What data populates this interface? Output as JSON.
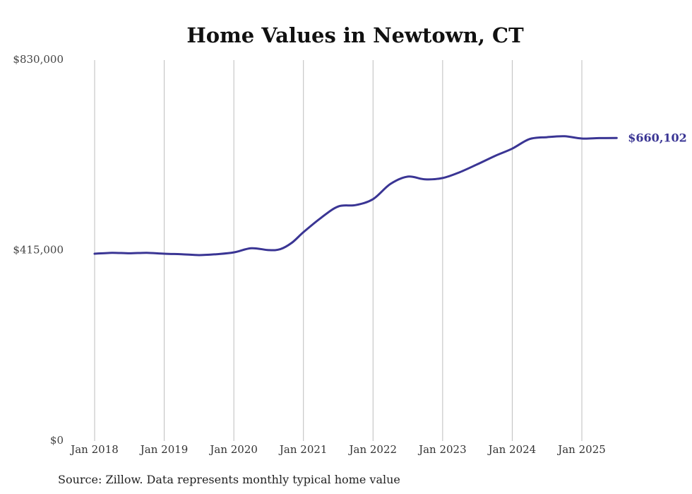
{
  "chart_data": {
    "type": "line",
    "title": "Home Values in Newtown, CT",
    "xlabel": "",
    "ylabel": "",
    "ylim": [
      0,
      830000
    ],
    "y_ticks": [
      "$0",
      "$415,000",
      "$830,000"
    ],
    "y_tick_values": [
      0,
      415000,
      830000
    ],
    "x_ticks": [
      "Jan 2018",
      "Jan 2019",
      "Jan 2020",
      "Jan 2021",
      "Jan 2022",
      "Jan 2023",
      "Jan 2024",
      "Jan 2025"
    ],
    "grid": "vertical",
    "line_color": "#3a3594",
    "end_label": "$660,102",
    "series": [
      {
        "values": [
          {
            "x": "2018-01",
            "y": 408000
          },
          {
            "x": "2018-04",
            "y": 410000
          },
          {
            "x": "2018-07",
            "y": 409000
          },
          {
            "x": "2018-10",
            "y": 410000
          },
          {
            "x": "2019-01",
            "y": 408000
          },
          {
            "x": "2019-04",
            "y": 407000
          },
          {
            "x": "2019-07",
            "y": 405000
          },
          {
            "x": "2019-10",
            "y": 407000
          },
          {
            "x": "2020-01",
            "y": 411000
          },
          {
            "x": "2020-04",
            "y": 420000
          },
          {
            "x": "2020-07",
            "y": 416000
          },
          {
            "x": "2020-09",
            "y": 418000
          },
          {
            "x": "2020-11",
            "y": 432000
          },
          {
            "x": "2021-01",
            "y": 455000
          },
          {
            "x": "2021-04",
            "y": 486000
          },
          {
            "x": "2021-07",
            "y": 511000
          },
          {
            "x": "2021-10",
            "y": 514000
          },
          {
            "x": "2022-01",
            "y": 527000
          },
          {
            "x": "2022-04",
            "y": 560000
          },
          {
            "x": "2022-07",
            "y": 576000
          },
          {
            "x": "2022-10",
            "y": 570000
          },
          {
            "x": "2023-01",
            "y": 573000
          },
          {
            "x": "2023-04",
            "y": 586000
          },
          {
            "x": "2023-07",
            "y": 603000
          },
          {
            "x": "2023-10",
            "y": 621000
          },
          {
            "x": "2024-01",
            "y": 637000
          },
          {
            "x": "2024-04",
            "y": 658000
          },
          {
            "x": "2024-07",
            "y": 662000
          },
          {
            "x": "2024-10",
            "y": 664000
          },
          {
            "x": "2025-01",
            "y": 659000
          },
          {
            "x": "2025-04",
            "y": 660000
          },
          {
            "x": "2025-07",
            "y": 660102
          }
        ]
      }
    ]
  },
  "footer": {
    "source": "Source: Zillow. Data represents monthly typical home value"
  }
}
